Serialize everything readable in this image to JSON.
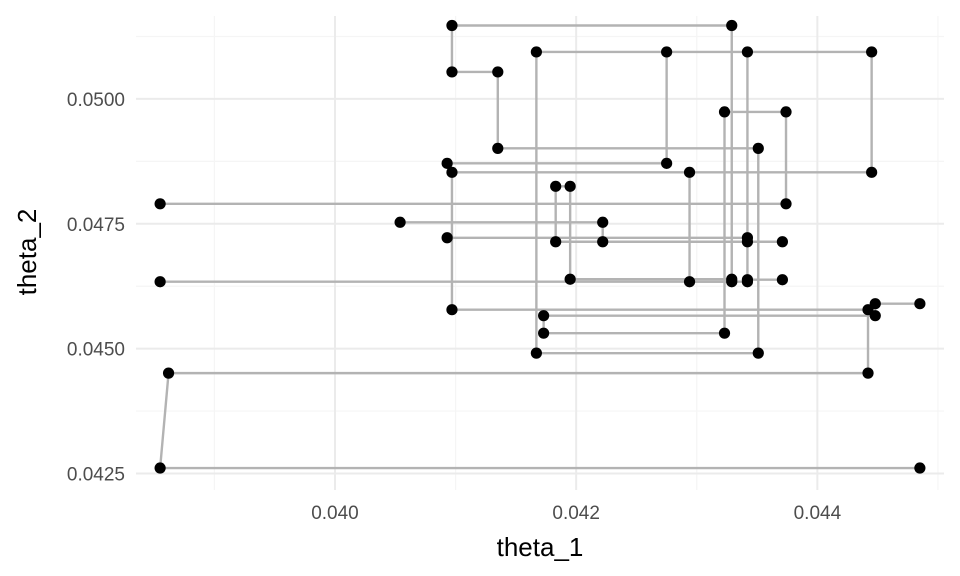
{
  "chart_data": {
    "type": "scatter",
    "title": "",
    "xlabel": "theta_1",
    "ylabel": "theta_2",
    "xlim": [
      0.03835,
      0.04505
    ],
    "ylim": [
      0.04217,
      0.05166
    ],
    "x_ticks": [
      {
        "value": 0.04,
        "label": "0.040"
      },
      {
        "value": 0.042,
        "label": "0.042"
      },
      {
        "value": 0.044,
        "label": "0.044"
      }
    ],
    "y_ticks": [
      {
        "value": 0.0425,
        "label": "0.0425"
      },
      {
        "value": 0.045,
        "label": "0.0450"
      },
      {
        "value": 0.0475,
        "label": "0.0475"
      },
      {
        "value": 0.05,
        "label": "0.0500"
      }
    ],
    "grid": true,
    "legend": "none",
    "colors": {
      "point": "#000000",
      "path": "#b3b3b3",
      "grid_major": "#ebebeb",
      "grid_minor": "#f5f5f5"
    },
    "series": [
      {
        "connect": "step",
        "points": [
          [
            0.04485,
            0.04261
          ],
          [
            0.03855,
            0.04261
          ],
          [
            0.03862,
            0.04451
          ],
          [
            0.04442,
            0.04451
          ],
          [
            0.04442,
            0.04578
          ],
          [
            0.04097,
            0.04578
          ],
          [
            0.04097,
            0.04853
          ],
          [
            0.04445,
            0.04853
          ],
          [
            0.04445,
            0.05094
          ],
          [
            0.04167,
            0.05094
          ],
          [
            0.04167,
            0.04491
          ],
          [
            0.04351,
            0.04491
          ],
          [
            0.04351,
            0.04901
          ],
          [
            0.04135,
            0.04901
          ],
          [
            0.04135,
            0.05054
          ],
          [
            0.04097,
            0.05054
          ],
          [
            0.04097,
            0.05147
          ],
          [
            0.04329,
            0.05147
          ],
          [
            0.04329,
            0.04639
          ],
          [
            0.04195,
            0.04639
          ],
          [
            0.04195,
            0.04825
          ],
          [
            0.04183,
            0.04825
          ],
          [
            0.04183,
            0.04714
          ],
          [
            0.04222,
            0.04714
          ],
          [
            0.04222,
            0.04753
          ],
          [
            0.04054,
            0.04753
          ],
          [
            0.04054,
            0.04753
          ]
        ]
      },
      {
        "connect": "step",
        "points": [
          [
            0.04374,
            0.04974
          ],
          [
            0.04323,
            0.04974
          ],
          [
            0.04323,
            0.04531
          ],
          [
            0.04173,
            0.04531
          ],
          [
            0.04173,
            0.04566
          ],
          [
            0.04448,
            0.04566
          ],
          [
            0.04448,
            0.0459
          ],
          [
            0.04485,
            0.0459
          ],
          [
            0.04485,
            0.0459
          ]
        ]
      },
      {
        "connect": "step",
        "points": [
          [
            0.03855,
            0.0479
          ],
          [
            0.04374,
            0.0479
          ],
          [
            0.04374,
            0.04974
          ]
        ]
      },
      {
        "connect": "step",
        "points": [
          [
            0.03855,
            0.04634
          ],
          [
            0.04329,
            0.04634
          ],
          [
            0.04329,
            0.04634
          ]
        ]
      },
      {
        "connect": "step",
        "points": [
          [
            0.04093,
            0.04871
          ],
          [
            0.04275,
            0.04871
          ],
          [
            0.04275,
            0.05094
          ],
          [
            0.04275,
            0.05094
          ]
        ]
      },
      {
        "connect": "step",
        "points": [
          [
            0.04093,
            0.04722
          ],
          [
            0.04342,
            0.04722
          ],
          [
            0.04342,
            0.04714
          ],
          [
            0.04342,
            0.04714
          ]
        ]
      },
      {
        "connect": "step",
        "points": [
          [
            0.04294,
            0.04853
          ],
          [
            0.04294,
            0.04634
          ],
          [
            0.04342,
            0.04634
          ],
          [
            0.04342,
            0.05094
          ],
          [
            0.04342,
            0.05094
          ]
        ]
      },
      {
        "connect": "step",
        "points": [
          [
            0.04371,
            0.04714
          ],
          [
            0.04222,
            0.04714
          ],
          [
            0.04222,
            0.04714
          ]
        ]
      },
      {
        "connect": "step",
        "points": [
          [
            0.04371,
            0.04638
          ],
          [
            0.04342,
            0.04638
          ],
          [
            0.04342,
            0.04638
          ]
        ]
      }
    ]
  }
}
